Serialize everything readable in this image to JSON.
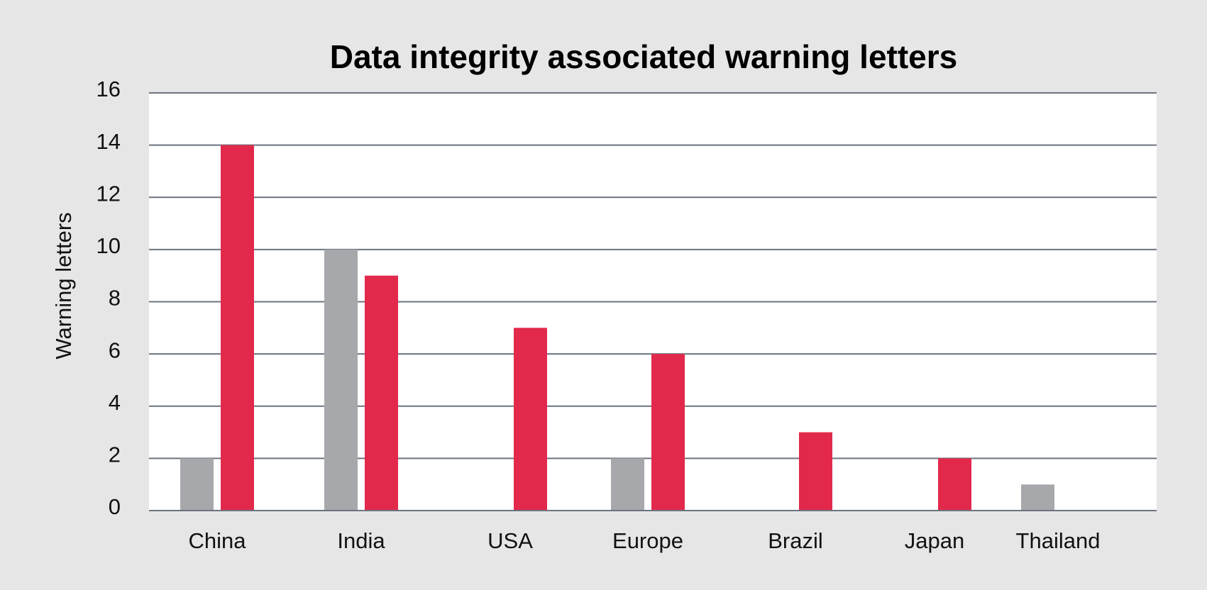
{
  "chart_data": {
    "type": "bar",
    "title": "Data integrity associated warning letters",
    "xlabel": "",
    "ylabel": "Warning letters",
    "ylim": [
      0,
      16
    ],
    "yticks": [
      "0",
      "2",
      "4",
      "6",
      "8",
      "10",
      "12",
      "14",
      "16"
    ],
    "categories": [
      "China",
      "India",
      "USA",
      "Europe",
      "Brazil",
      "Japan",
      "Thailand"
    ],
    "series": [
      {
        "color": "#a7a8ab",
        "values": [
          2,
          10,
          0,
          2,
          0,
          0,
          1
        ]
      },
      {
        "color": "#e2294b",
        "values": [
          14,
          9,
          7,
          6,
          3,
          2,
          0
        ]
      }
    ],
    "grid": true,
    "legend": "none"
  },
  "colors": {
    "background": "#e6e6e6",
    "plot_background": "#ffffff",
    "gridline": "#6b7380"
  }
}
